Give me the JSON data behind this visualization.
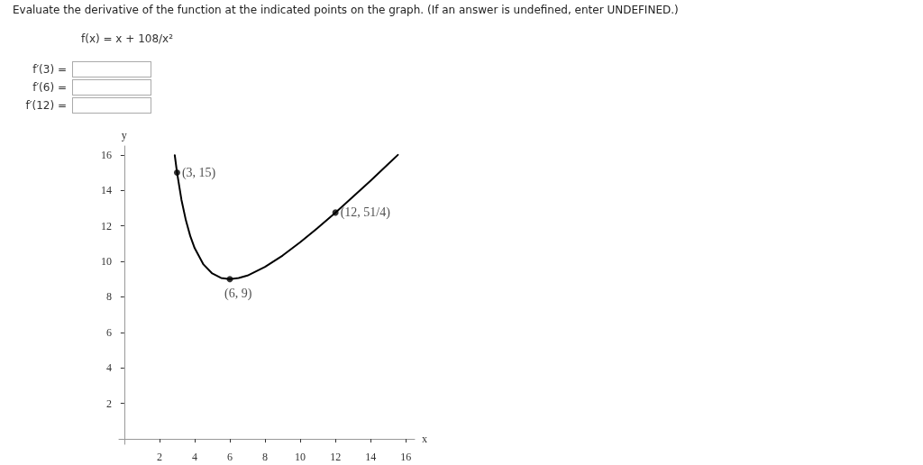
{
  "chart_data": {
    "type": "line",
    "title": "Evaluate the derivative of the function at the indicated points on the graph. (If an answer is undefined, enter UNDEFINED.)",
    "annotations": [
      "f(x) = x + 108/x²",
      "f′(3) =",
      "f′(6) =",
      "f′(12) ="
    ],
    "xlabel": "x",
    "ylabel": "y",
    "xlim": [
      -0.3,
      16.5
    ],
    "ylim": [
      -0.3,
      16.5
    ],
    "xticks": [
      2,
      4,
      6,
      8,
      10,
      12,
      14,
      16
    ],
    "yticks": [
      2,
      4,
      6,
      8,
      10,
      12,
      14,
      16
    ],
    "grid": false,
    "series": [
      {
        "color": "#000000",
        "marker": "none",
        "x": [
          2.87,
          3,
          3.25,
          3.5,
          3.75,
          4,
          4.5,
          5,
          5.5,
          6,
          6.5,
          7,
          8,
          9,
          10,
          11,
          12,
          13,
          14,
          15,
          15.55
        ],
        "values": [
          15.98,
          15,
          13.47,
          12.32,
          11.43,
          10.75,
          9.83,
          9.32,
          9.07,
          9,
          9.06,
          9.2,
          9.69,
          10.33,
          11.08,
          11.89,
          12.75,
          13.64,
          14.55,
          15.48,
          16
        ]
      },
      {
        "type": "scatter",
        "color": "#000000",
        "marker": "circle",
        "x": [
          3,
          6,
          12
        ],
        "values": [
          15,
          9,
          12.75
        ],
        "value_labels": [
          "(3, 15)",
          "(6, 9)",
          "(12, 51/4)"
        ]
      }
    ]
  }
}
